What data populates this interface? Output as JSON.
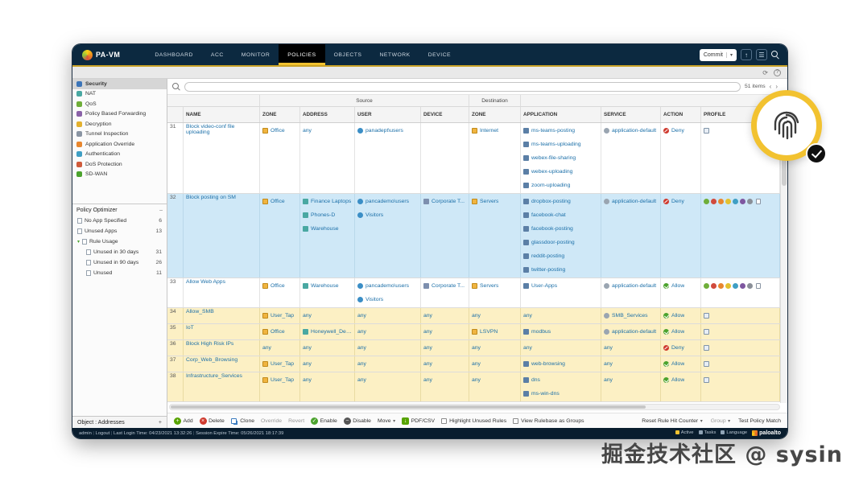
{
  "watermark": "掘金技术社区 @ sysin",
  "colors": {
    "accent_gold": "#f2c230",
    "selected_row": "#cfe8f7",
    "unused_row": "#fcf0c4",
    "deny_red": "#cf3b2f",
    "allow_green": "#4ca32e",
    "link_blue": "#1b6fa8",
    "header_navy": "#0c2940"
  },
  "header": {
    "brand": "PA-VM",
    "commit_label": "Commit",
    "tabs": [
      {
        "label": "DASHBOARD",
        "active": false
      },
      {
        "label": "ACC",
        "active": false
      },
      {
        "label": "MONITOR",
        "active": false
      },
      {
        "label": "POLICIES",
        "active": true
      },
      {
        "label": "OBJECTS",
        "active": false
      },
      {
        "label": "NETWORK",
        "active": false
      },
      {
        "label": "DEVICE",
        "active": false
      }
    ]
  },
  "sidebar": {
    "policies": [
      {
        "label": "Security",
        "icon": "shield",
        "selected": true
      },
      {
        "label": "NAT",
        "icon": "nat",
        "selected": false
      },
      {
        "label": "QoS",
        "icon": "qos",
        "selected": false
      },
      {
        "label": "Policy Based Forwarding",
        "icon": "forwarding",
        "selected": false
      },
      {
        "label": "Decryption",
        "icon": "decryption",
        "selected": false
      },
      {
        "label": "Tunnel Inspection",
        "icon": "tunnel",
        "selected": false
      },
      {
        "label": "Application Override",
        "icon": "app-override",
        "selected": false
      },
      {
        "label": "Authentication",
        "icon": "authentication",
        "selected": false
      },
      {
        "label": "DoS Protection",
        "icon": "dos",
        "selected": false
      },
      {
        "label": "SD-WAN",
        "icon": "sdwan",
        "selected": false
      }
    ],
    "optimizer": {
      "title": "Policy Optimizer",
      "items": [
        {
          "label": "No App Specified",
          "count": "6",
          "indent": 0,
          "chevron": false
        },
        {
          "label": "Unused Apps",
          "count": "13",
          "indent": 0,
          "chevron": false
        },
        {
          "label": "Rule Usage",
          "count": "",
          "indent": 0,
          "chevron": true
        },
        {
          "label": "Unused in 30 days",
          "count": "31",
          "indent": 1,
          "chevron": false
        },
        {
          "label": "Unused in 90 days",
          "count": "26",
          "indent": 1,
          "chevron": false
        },
        {
          "label": "Unused",
          "count": "11",
          "indent": 1,
          "chevron": false
        }
      ]
    },
    "bottom_label": "Object : Addresses",
    "bottom_add": "+"
  },
  "toolbar": {
    "items_count": "51 items"
  },
  "table": {
    "group_source": "Source",
    "group_destination": "Destination",
    "columns": [
      "NAME",
      "ZONE",
      "ADDRESS",
      "USER",
      "DEVICE",
      "ZONE",
      "APPLICATION",
      "SERVICE",
      "ACTION",
      "PROFILE"
    ],
    "rows": [
      {
        "num": "31",
        "name": "Block video-conf file uploading",
        "highlight": "none",
        "zone": [
          "Office"
        ],
        "address": [
          "any"
        ],
        "user": [
          "panadept\\users"
        ],
        "device": [],
        "dest_zone": [
          "Internet"
        ],
        "apps": [
          "ms-teams-posting",
          "ms-teams-uploading",
          "webex-file-sharing",
          "webex-uploading",
          "zoom-uploading"
        ],
        "service": [
          "application-default"
        ],
        "action": "Deny",
        "profile": "group"
      },
      {
        "num": "32",
        "name": "Block posting on SM",
        "highlight": "selected",
        "zone": [
          "Office"
        ],
        "address": [
          "Finance Laptops",
          "Phones-D",
          "Warehouse"
        ],
        "user": [
          "pancademo\\users",
          "Visitors"
        ],
        "device": [
          "Corporate T..."
        ],
        "dest_zone": [
          "Servers"
        ],
        "apps": [
          "dropbox-posting",
          "facebook-chat",
          "facebook-posting",
          "glassdoor-posting",
          "reddit-posting",
          "twitter-posting"
        ],
        "service": [
          "application-default"
        ],
        "action": "Deny",
        "profile": "multi"
      },
      {
        "num": "33",
        "name": "Allow Web Apps",
        "highlight": "none",
        "zone": [
          "Office"
        ],
        "address": [
          "Warehouse"
        ],
        "user": [
          "pancademo\\users",
          "Visitors"
        ],
        "device": [
          "Corporate T..."
        ],
        "dest_zone": [
          "Servers"
        ],
        "apps": [
          "User-Apps"
        ],
        "service": [
          "application-default"
        ],
        "action": "Allow",
        "profile": "multi"
      },
      {
        "num": "34",
        "name": "Allow_SMB",
        "highlight": "unused",
        "zone": [
          "User_Tap"
        ],
        "address": [
          "any"
        ],
        "user": [
          "any"
        ],
        "device": [
          "any"
        ],
        "dest_zone": [
          "any"
        ],
        "apps": [
          "any"
        ],
        "service": [
          "SMB_Services"
        ],
        "action": "Allow",
        "profile": "group"
      },
      {
        "num": "35",
        "name": "IoT",
        "highlight": "unused",
        "zone": [
          "Office"
        ],
        "address": [
          "Honeywell_Devi..."
        ],
        "user": [
          "any"
        ],
        "device": [
          "any"
        ],
        "dest_zone": [
          "LSVPN"
        ],
        "apps": [
          "modbus"
        ],
        "service": [
          "application-default"
        ],
        "action": "Allow",
        "profile": "group"
      },
      {
        "num": "36",
        "name": "Block High Risk IPs",
        "highlight": "unused",
        "zone": [
          "any"
        ],
        "address": [
          "any"
        ],
        "user": [
          "any"
        ],
        "device": [
          "any"
        ],
        "dest_zone": [
          "any"
        ],
        "apps": [
          "any"
        ],
        "service": [
          "any"
        ],
        "action": "Deny",
        "profile": "group"
      },
      {
        "num": "37",
        "name": "Corp_Web_Browsing",
        "highlight": "unused",
        "zone": [
          "User_Tap"
        ],
        "address": [
          "any"
        ],
        "user": [
          "any"
        ],
        "device": [
          "any"
        ],
        "dest_zone": [
          "any"
        ],
        "apps": [
          "web-browsing"
        ],
        "service": [
          "any"
        ],
        "action": "Allow",
        "profile": "group"
      },
      {
        "num": "38",
        "name": "Infrastructure_Services",
        "highlight": "unused",
        "zone": [
          "User_Tap"
        ],
        "address": [
          "any"
        ],
        "user": [
          "any"
        ],
        "device": [
          "any"
        ],
        "dest_zone": [
          "any"
        ],
        "apps": [
          "dns",
          "ms-win-dns"
        ],
        "service": [
          "any"
        ],
        "action": "Allow",
        "profile": "group"
      }
    ]
  },
  "footer": {
    "buttons": [
      {
        "label": "Add",
        "icon": "add",
        "disabled": false,
        "caret": false
      },
      {
        "label": "Delete",
        "icon": "delete",
        "disabled": false,
        "caret": false
      },
      {
        "label": "Clone",
        "icon": "clone",
        "disabled": false,
        "caret": false
      },
      {
        "label": "Override",
        "icon": "",
        "disabled": true,
        "caret": false
      },
      {
        "label": "Revert",
        "icon": "",
        "disabled": true,
        "caret": false
      },
      {
        "label": "Enable",
        "icon": "enable",
        "disabled": false,
        "caret": false
      },
      {
        "label": "Disable",
        "icon": "disable",
        "disabled": false,
        "caret": false
      },
      {
        "label": "Move",
        "icon": "",
        "disabled": false,
        "caret": true
      },
      {
        "label": "PDF/CSV",
        "icon": "pdf",
        "disabled": false,
        "caret": false
      }
    ],
    "checkboxes": [
      {
        "label": "Highlight Unused Rules",
        "checked": false
      },
      {
        "label": "View Rulebase as Groups",
        "checked": false
      }
    ],
    "right": [
      {
        "label": "Reset Rule Hit Counter",
        "disabled": false,
        "caret": true
      },
      {
        "label": "Group",
        "disabled": true,
        "caret": true
      },
      {
        "label": "Test Policy Match",
        "disabled": false,
        "caret": false
      }
    ]
  },
  "statusbar": {
    "left": [
      "admin",
      "Logout",
      "Last Login Time: 04/23/2021 13:32:26",
      "Session Expire Time: 05/26/2021 18:17:39"
    ],
    "right_items": [
      {
        "label": "Active",
        "icon": "status"
      },
      {
        "label": "Tasks",
        "icon": "tasks"
      },
      {
        "label": "Language",
        "icon": "language"
      }
    ],
    "logo": "paloalto"
  }
}
